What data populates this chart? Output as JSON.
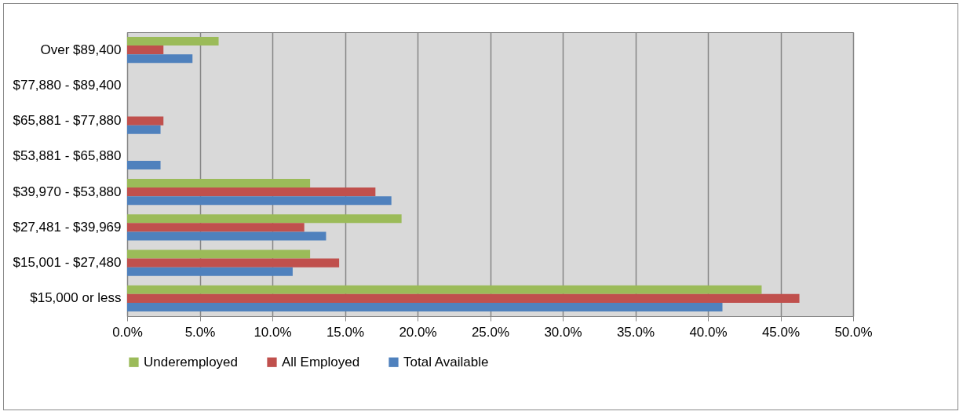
{
  "chart_data": {
    "type": "bar",
    "orientation": "horizontal",
    "categories": [
      "Over $89,400",
      "$77,880 - $89,400",
      "$65,881 - $77,880",
      "$53,881 - $65,880",
      "$39,970 - $53,880",
      "$27,481 - $39,969",
      "$15,001 - $27,480",
      "$15,000 or less"
    ],
    "series": [
      {
        "name": "Underemployed",
        "color": "#9bbb59",
        "values": [
          6.3,
          null,
          null,
          null,
          12.6,
          18.9,
          12.6,
          43.7
        ]
      },
      {
        "name": "All Employed",
        "color": "#c0504d",
        "values": [
          2.5,
          null,
          2.5,
          null,
          17.1,
          12.2,
          14.6,
          46.3
        ]
      },
      {
        "name": "Total Available",
        "color": "#4f81bd",
        "values": [
          4.5,
          null,
          2.3,
          2.3,
          18.2,
          13.7,
          11.4,
          41.0
        ]
      }
    ],
    "xlim": [
      0,
      50
    ],
    "xticks": [
      {
        "value": 0,
        "label": "0.0%"
      },
      {
        "value": 5,
        "label": "5.0%"
      },
      {
        "value": 10,
        "label": "10.0%"
      },
      {
        "value": 15,
        "label": "15.0%"
      },
      {
        "value": 20,
        "label": "20.0%"
      },
      {
        "value": 25,
        "label": "25.0%"
      },
      {
        "value": 30,
        "label": "30.0%"
      },
      {
        "value": 35,
        "label": "35.0%"
      },
      {
        "value": 40,
        "label": "40.0%"
      },
      {
        "value": 45,
        "label": "45.0%"
      },
      {
        "value": 50,
        "label": "50.0%"
      }
    ],
    "grid": "x",
    "legend": "bottom"
  }
}
